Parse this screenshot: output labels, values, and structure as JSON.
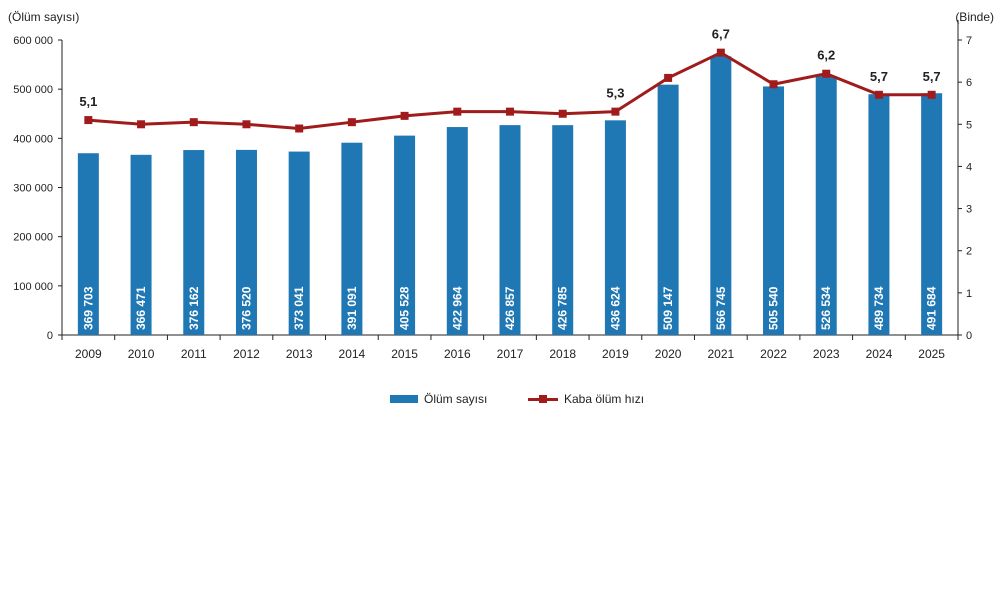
{
  "chart_data": {
    "type": "bar",
    "categories": [
      "2009",
      "2010",
      "2011",
      "2012",
      "2013",
      "2014",
      "2015",
      "2016",
      "2017",
      "2018",
      "2019",
      "2020",
      "2021",
      "2022",
      "2023",
      "2024",
      "2025"
    ],
    "series": [
      {
        "name": "Ölüm sayısı",
        "type": "bar",
        "axis": "left",
        "color": "#1f77b4",
        "values": [
          369703,
          366471,
          376162,
          376520,
          373041,
          391091,
          405528,
          422964,
          426857,
          426785,
          436624,
          509147,
          566745,
          505540,
          526534,
          489734,
          491684
        ],
        "labels": [
          "369 703",
          "366 471",
          "376 162",
          "376 520",
          "373 041",
          "391 091",
          "405 528",
          "422 964",
          "426 857",
          "426 785",
          "436 624",
          "509 147",
          "566 745",
          "505 540",
          "526 534",
          "489 734",
          "491 684"
        ]
      },
      {
        "name": "Kaba ölüm hızı",
        "type": "line",
        "axis": "right",
        "color": "#a01c1c",
        "values": [
          5.1,
          5.0,
          5.05,
          5.0,
          4.9,
          5.05,
          5.2,
          5.3,
          5.3,
          5.25,
          5.3,
          6.1,
          6.7,
          5.95,
          6.2,
          5.7,
          5.7
        ],
        "labels": [
          "5,1",
          "",
          "",
          "",
          "",
          "",
          "",
          "",
          "",
          "",
          "5,3",
          "",
          "6,7",
          "",
          "6,2",
          "5,7",
          "5,7"
        ]
      }
    ],
    "ylabel": "(Ölüm sayısı)",
    "ylabel_right": "(Binde)",
    "ylim": [
      0,
      600000
    ],
    "ylim_right": [
      0,
      7
    ],
    "yticks": [
      "0",
      "100 000",
      "200 000",
      "300 000",
      "400 000",
      "500 000",
      "600 000"
    ],
    "yticks_right": [
      "0",
      "1",
      "2",
      "3",
      "4",
      "5",
      "6",
      "7"
    ],
    "grid": false,
    "legend_position": "bottom"
  },
  "legend": {
    "bar_label": "Ölüm sayısı",
    "line_label": "Kaba ölüm hızı"
  }
}
